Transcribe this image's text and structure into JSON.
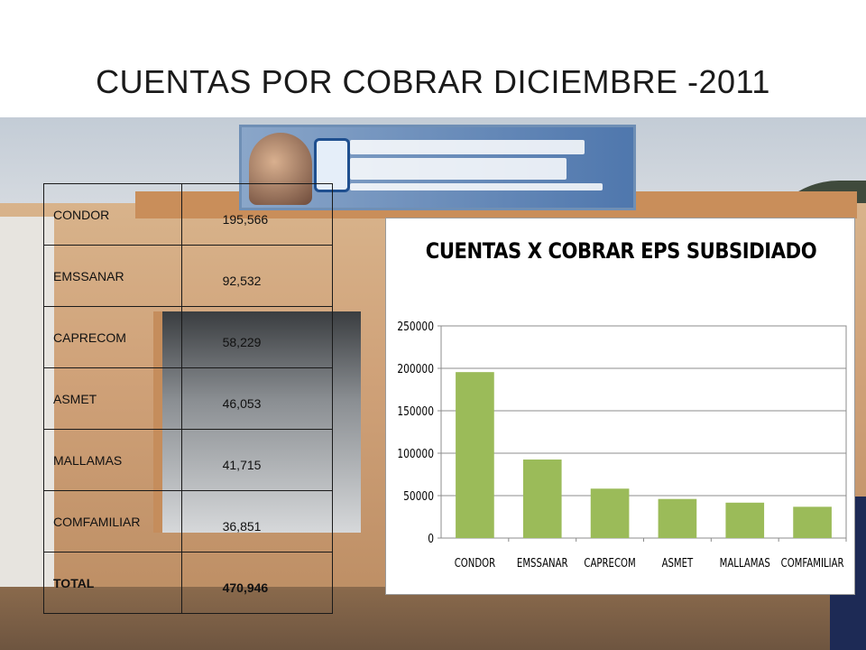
{
  "slide": {
    "title": "CUENTAS POR COBRAR DICIEMBRE -2011"
  },
  "table": {
    "rows": [
      {
        "name": "CONDOR",
        "value": "195,566"
      },
      {
        "name": "EMSSANAR",
        "value": "92,532"
      },
      {
        "name": "CAPRECOM",
        "value": "58,229"
      },
      {
        "name": "ASMET",
        "value": "46,053"
      },
      {
        "name": "MALLAMAS",
        "value": "41,715"
      },
      {
        "name": "COMFAMILIAR",
        "value": "36,851"
      },
      {
        "name": "TOTAL",
        "value": "470,946"
      }
    ]
  },
  "chart_data": {
    "type": "bar",
    "title": "CUENTAS X COBRAR EPS SUBSIDIADO",
    "categories": [
      "CONDOR",
      "EMSSANAR",
      "CAPRECOM",
      "ASMET",
      "MALLAMAS",
      "COMFAMILIAR"
    ],
    "values": [
      195566,
      92532,
      58229,
      46053,
      41715,
      36851
    ],
    "xlabel": "",
    "ylabel": "",
    "ylim": [
      0,
      250000
    ],
    "yticks": [
      "0",
      "50000",
      "100000",
      "150000",
      "200000",
      "250000"
    ],
    "grid": true,
    "legend": "none",
    "bar_color": "#9bbb59"
  }
}
